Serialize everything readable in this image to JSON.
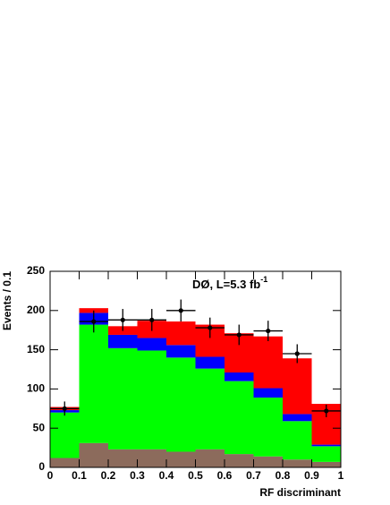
{
  "chart_data": {
    "type": "histogram",
    "x_label": "RF discriminant",
    "y_label": "Events / 0.1",
    "annotation": {
      "text": "DØ, L=5.3 fb",
      "superscript": "-1"
    },
    "bins": [
      0,
      0.1,
      0.2,
      0.3,
      0.4,
      0.5,
      0.6,
      0.7,
      0.8,
      0.9,
      1
    ],
    "xlim": [
      0,
      1
    ],
    "xticks": [
      0,
      0.1,
      0.2,
      0.3,
      0.4,
      0.5,
      0.6,
      0.7,
      0.8,
      0.9,
      1
    ],
    "ylim": [
      0,
      250
    ],
    "yticks": [
      0,
      50,
      100,
      150,
      200,
      250
    ],
    "stacked": true,
    "series": [
      {
        "color": "#8c6b5c",
        "values": [
          12,
          31,
          23,
          23,
          20,
          23,
          17,
          14,
          10,
          7
        ]
      },
      {
        "color": "#00ff00",
        "values": [
          58,
          151,
          129,
          126,
          120,
          103,
          93,
          75,
          49,
          20
        ]
      },
      {
        "color": "#0000ff",
        "values": [
          3,
          15,
          17,
          16,
          16,
          15,
          11,
          12,
          9,
          2
        ]
      },
      {
        "color": "#ff0000",
        "values": [
          4,
          6,
          11,
          22,
          30,
          41,
          50,
          66,
          71,
          52
        ]
      }
    ],
    "data_points": {
      "color": "#000000",
      "values": [
        75,
        186,
        188,
        188,
        200,
        178,
        169,
        174,
        145,
        72
      ],
      "errors": [
        9,
        14,
        14,
        14,
        14,
        13,
        13,
        13,
        12,
        8
      ]
    }
  }
}
